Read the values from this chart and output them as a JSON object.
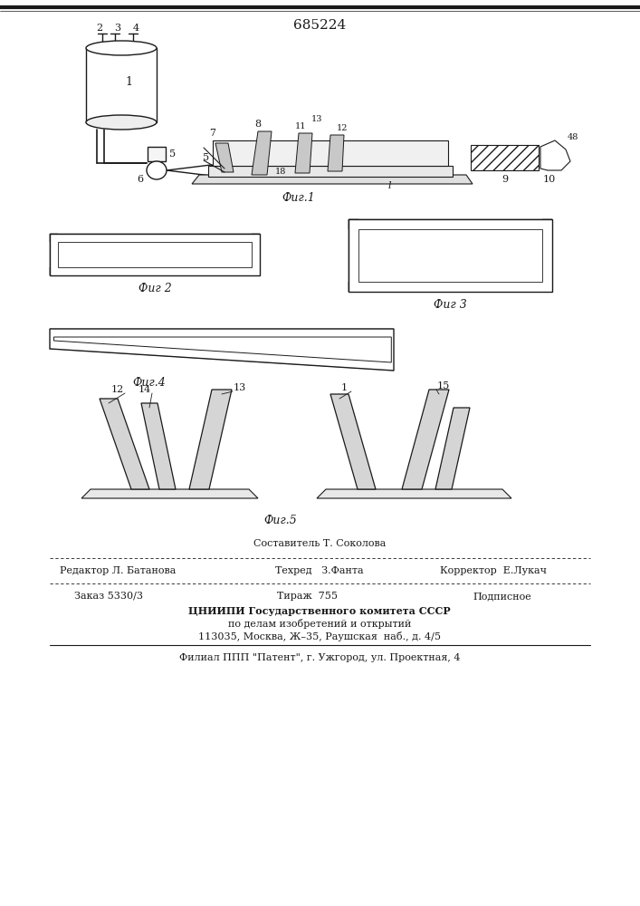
{
  "patent_number": "685224",
  "bg_color": "#ffffff",
  "line_color": "#1a1a1a",
  "fig_label_1": "Фиг.1",
  "fig_label_2": "Фиг 2",
  "fig_label_3": "Фиг 3",
  "fig_label_4": "Фиг.4",
  "fig_label_5": "Фиг.5",
  "footer_comp": "Составитель Т. Соколова",
  "footer_editor": "Редактор Л. Батанова",
  "footer_tech": "Техред   З.Фанта",
  "footer_corr": "Корректор  Е.Лукач",
  "footer_order": "Заказ 5330/3",
  "footer_tirazh": "Тираж  755",
  "footer_podp": "Подписное",
  "footer_org1": "ЦНИИПИ Государственного комитета СССР",
  "footer_org2": "по делам изобретений и открытий",
  "footer_org3": "113035, Москва, Ж–35, Раушская  наб., д. 4/5",
  "footer_branch": "Филиал ППП \"Патент\", г. Ужгород, ул. Проектная, 4"
}
